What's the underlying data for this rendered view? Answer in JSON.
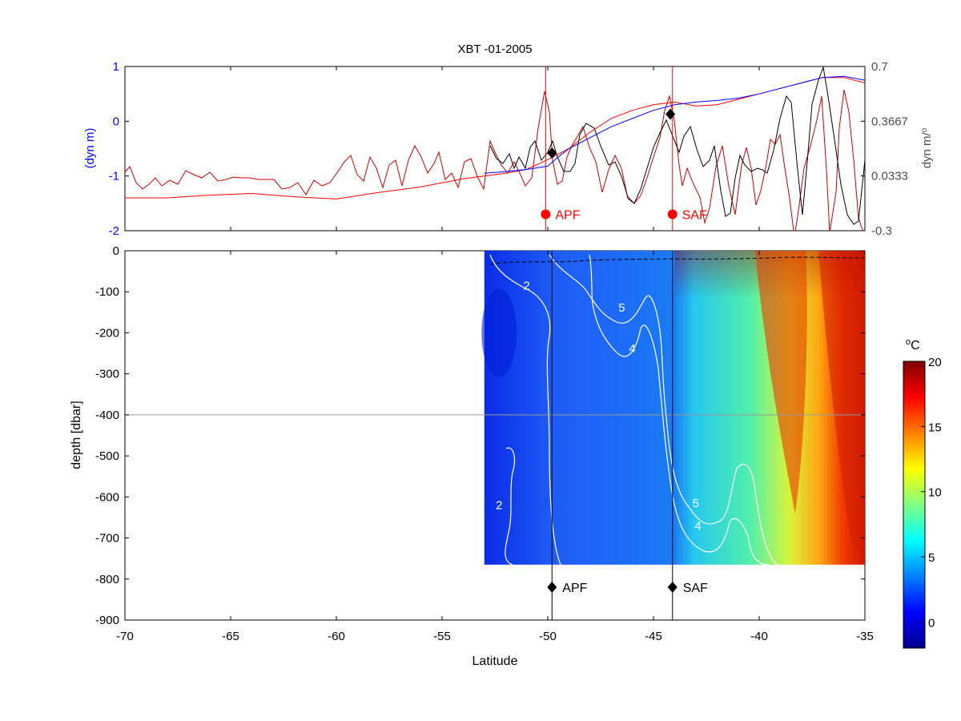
{
  "colors": {
    "dyn_left": "#0000ff",
    "dyn_right": "#4d4d4d",
    "front_red": "#ff0000",
    "slope_red": "#cc0000",
    "slope_black": "#000000",
    "contour": "#ffffff"
  },
  "chart_data": [
    {
      "type": "line",
      "title": "XBT -01-2005",
      "ylabel": "(dyn m)",
      "ylabel_right": "dyn m/",
      "ylabel_right_sup": "o",
      "xlim": [
        -70,
        -35
      ],
      "ylim": [
        -2,
        1
      ],
      "ylim_right": [
        -0.3,
        0.7
      ],
      "yticks": [
        "1",
        "0",
        "-1",
        "-2"
      ],
      "yticks_right": [
        "0.7",
        "0.3667",
        "0.0333",
        "-0.3"
      ],
      "fronts": [
        {
          "label": "APF",
          "lat": -50.1,
          "y": -1.7
        },
        {
          "label": "SAF",
          "lat": -44.1,
          "y": -1.7
        }
      ],
      "series": [
        {
          "axis": "left",
          "x": [
            -70,
            -68,
            -66,
            -64,
            -62,
            -60,
            -58,
            -56,
            -54,
            -52,
            -51,
            -50,
            -49,
            -48,
            -47,
            -46,
            -45,
            -44,
            -43,
            -42,
            -41,
            -40,
            -39,
            -38,
            -37,
            -36,
            -35
          ],
          "values": [
            -1.4,
            -1.4,
            -1.35,
            -1.32,
            -1.38,
            -1.42,
            -1.3,
            -1.2,
            -1.05,
            -0.95,
            -0.88,
            -0.7,
            -0.5,
            -0.2,
            0.05,
            0.2,
            0.3,
            0.35,
            0.28,
            0.3,
            0.4,
            0.5,
            0.6,
            0.7,
            0.8,
            0.8,
            0.7
          ]
        },
        {
          "axis": "left",
          "x": [
            -53,
            -52,
            -51,
            -50,
            -49.5,
            -49,
            -48,
            -47,
            -46,
            -45,
            -44,
            -43,
            -42,
            -41,
            -40,
            -39,
            -38,
            -37,
            -36,
            -35
          ],
          "values": [
            -0.95,
            -0.92,
            -0.88,
            -0.82,
            -0.65,
            -0.5,
            -0.3,
            -0.1,
            0.05,
            0.2,
            0.3,
            0.35,
            0.38,
            0.42,
            0.5,
            0.6,
            0.7,
            0.8,
            0.82,
            0.75
          ]
        }
      ],
      "front_markers_left": [
        {
          "lat": -49.8,
          "y": -0.58
        },
        {
          "lat": -44.2,
          "y": 0.13
        }
      ]
    },
    {
      "type": "heatmap",
      "xlabel": "Latitude",
      "ylabel": "depth [dbar]",
      "xlim": [
        -70,
        -35
      ],
      "ylim": [
        -900,
        0
      ],
      "xticks": [
        "-70",
        "-65",
        "-60",
        "-55",
        "-50",
        "-45",
        "-40",
        "-35"
      ],
      "yticks": [
        "0",
        "-100",
        "-200",
        "-300",
        "-400",
        "-500",
        "-600",
        "-700",
        "-800",
        "-900"
      ],
      "data_extent": {
        "lat": [
          -53,
          -35
        ],
        "depth": [
          -765,
          0
        ]
      },
      "reference_depth": -400,
      "fronts": [
        {
          "label": "APF",
          "lat": -49.8,
          "y": -820
        },
        {
          "label": "SAF",
          "lat": -44.1,
          "y": -820
        }
      ],
      "contour_labels": [
        {
          "text": "2",
          "lat": -51.0,
          "depth": -95
        },
        {
          "text": "5",
          "lat": -46.5,
          "depth": -148
        },
        {
          "text": "4",
          "lat": -46.0,
          "depth": -248
        },
        {
          "text": "2",
          "lat": -52.3,
          "depth": -630
        },
        {
          "text": "5",
          "lat": -43.0,
          "depth": -625
        },
        {
          "text": "4",
          "lat": -42.9,
          "depth": -680
        }
      ],
      "colorbar": {
        "unit": "C",
        "unit_sup": "o",
        "range": [
          -2,
          20
        ],
        "ticks": [
          "20",
          "15",
          "10",
          "5",
          "0"
        ]
      }
    }
  ]
}
